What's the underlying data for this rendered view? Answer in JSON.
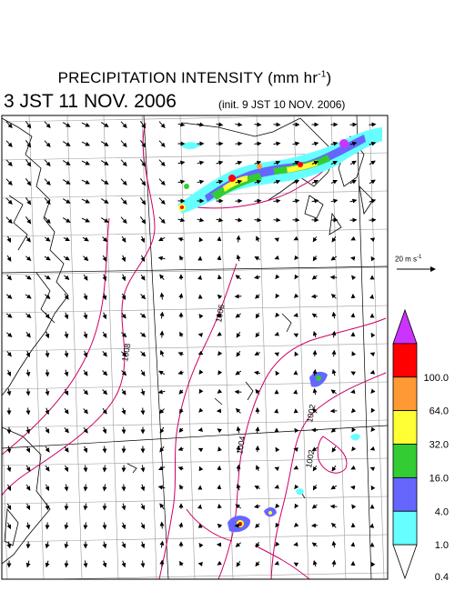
{
  "header": {
    "title_main": "PRECIPITATION INTENSITY (mm hr",
    "title_exp": "-1",
    "title_end": ")",
    "valid_time": "3 JST 11 NOV. 2006",
    "init_time": "(init. 9 JST 10 NOV. 2006)"
  },
  "reference_vector": {
    "label_main": "20 m s",
    "label_exp": "-1"
  },
  "colorbar": {
    "labels": [
      "0.4",
      "1.0",
      "4.0",
      "16.0",
      "32.0",
      "64.0",
      "100.0"
    ],
    "colors": [
      "#ffffff",
      "#66ffff",
      "#6666ff",
      "#33cc33",
      "#ffff33",
      "#ff9933",
      "#ff0000",
      "#cc33ff"
    ]
  },
  "isobars": {
    "color": "#cc0066",
    "labels": [
      "1006",
      "1008",
      "1004",
      "1002",
      "1002"
    ]
  }
}
